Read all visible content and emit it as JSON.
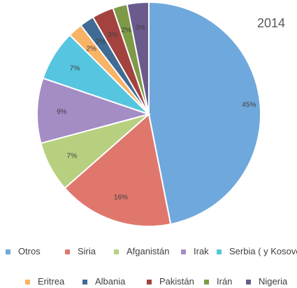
{
  "chart_data": {
    "type": "pie",
    "title": "2014",
    "legend_position": "bottom",
    "categories": [
      "Otros",
      "Siria",
      "Afganistán",
      "Irak",
      "Serbia ( y Kosovo)",
      "Eritrea",
      "Albania",
      "Pakistán",
      "Irán",
      "Nigeria"
    ],
    "values": [
      45,
      16,
      7,
      9,
      7,
      2,
      2,
      3,
      2,
      3
    ],
    "labels": [
      "45%",
      "16%",
      "7%",
      "9%",
      "7%",
      "2%",
      "2%",
      "3%",
      "2%",
      "3%"
    ],
    "colors": [
      "#6fa8dc",
      "#e0776d",
      "#b6d07f",
      "#a48cc4",
      "#56c5df",
      "#f9b366",
      "#3f6b94",
      "#a3423f",
      "#7e9a47",
      "#6a5b8c"
    ]
  }
}
